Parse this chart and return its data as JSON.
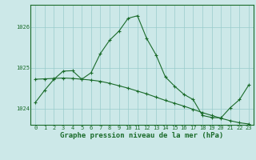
{
  "title": "Graphe pression niveau de la mer (hPa)",
  "background_color": "#cce8e8",
  "grid_color": "#99cccc",
  "line_color": "#1a6b2a",
  "x_labels": [
    "0",
    "1",
    "2",
    "3",
    "4",
    "5",
    "6",
    "7",
    "8",
    "9",
    "10",
    "11",
    "12",
    "13",
    "14",
    "15",
    "16",
    "17",
    "18",
    "19",
    "20",
    "21",
    "22",
    "23"
  ],
  "series1": [
    1024.15,
    1024.45,
    1024.72,
    1024.92,
    1024.93,
    1024.72,
    1024.88,
    1025.35,
    1025.68,
    1025.9,
    1026.22,
    1026.28,
    1025.72,
    1025.32,
    1024.78,
    1024.55,
    1024.35,
    1024.22,
    1023.83,
    1023.78,
    1023.77,
    1024.02,
    1024.22,
    1024.58
  ],
  "series2": [
    1024.72,
    1024.73,
    1024.74,
    1024.75,
    1024.74,
    1024.72,
    1024.7,
    1024.67,
    1024.62,
    1024.56,
    1024.5,
    1024.43,
    1024.36,
    1024.28,
    1024.2,
    1024.13,
    1024.06,
    1023.98,
    1023.9,
    1023.83,
    1023.76,
    1023.7,
    1023.65,
    1023.62
  ],
  "ylim": [
    1023.6,
    1026.55
  ],
  "yticks": [
    1024,
    1025,
    1026
  ],
  "title_fontsize": 6.5,
  "tick_fontsize": 5.0
}
